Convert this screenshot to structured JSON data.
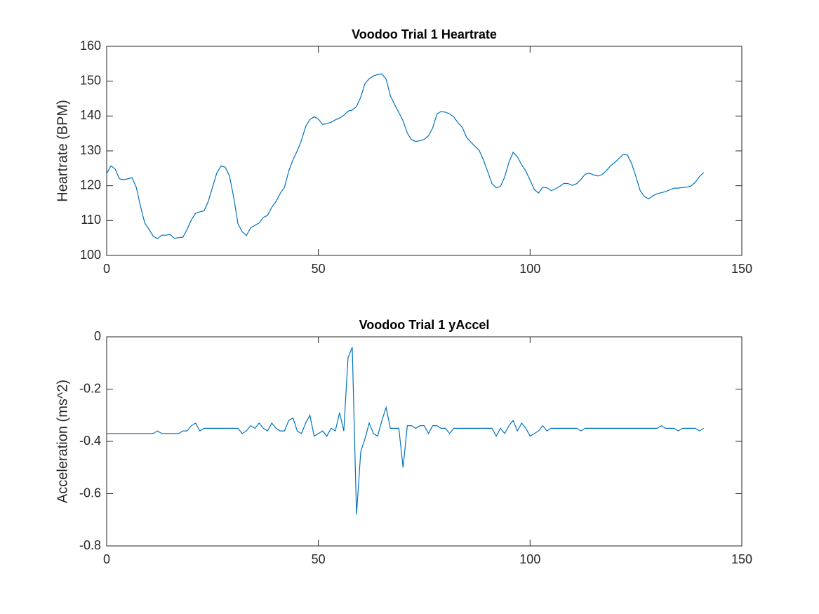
{
  "chart_data": [
    {
      "type": "line",
      "title": "Voodoo Trial 1 Heartrate",
      "ylabel": "Heartrate (BPM)",
      "x": [
        0,
        1,
        2,
        3,
        4,
        5,
        6,
        7,
        8,
        9,
        10,
        11,
        12,
        13,
        14,
        15,
        16,
        17,
        18,
        19,
        20,
        21,
        22,
        23,
        24,
        25,
        26,
        27,
        28,
        29,
        30,
        31,
        32,
        33,
        34,
        35,
        36,
        37,
        38,
        39,
        40,
        41,
        42,
        43,
        44,
        45,
        46,
        47,
        48,
        49,
        50,
        51,
        52,
        53,
        54,
        55,
        56,
        57,
        58,
        59,
        60,
        61,
        62,
        63,
        64,
        65,
        66,
        67,
        68,
        69,
        70,
        71,
        72,
        73,
        74,
        75,
        76,
        77,
        78,
        79,
        80,
        81,
        82,
        83,
        84,
        85,
        86,
        87,
        88,
        89,
        90,
        91,
        92,
        93,
        94,
        95,
        96,
        97,
        98,
        99,
        100,
        101,
        102,
        103,
        104,
        105,
        106,
        107,
        108,
        109,
        110,
        111,
        112,
        113,
        114,
        115,
        116,
        117,
        118,
        119,
        120,
        121,
        122,
        123,
        124,
        125,
        126,
        127,
        128,
        129,
        130,
        131,
        132,
        133,
        134,
        135,
        136,
        137,
        138,
        139,
        140,
        141
      ],
      "values": [
        123.5,
        125.7,
        124.8,
        122,
        121.7,
        122,
        122.3,
        119.5,
        114,
        109.3,
        107.5,
        105.5,
        104.8,
        105.8,
        105.8,
        106,
        104.9,
        105.1,
        105.2,
        107.5,
        110.2,
        112.1,
        112.5,
        112.8,
        115.5,
        119.6,
        123.6,
        125.7,
        125.3,
        122.8,
        116.7,
        109.1,
        106.8,
        105.7,
        107.9,
        108.6,
        109.3,
        110.9,
        111.5,
        113.8,
        115.5,
        117.8,
        119.6,
        124.2,
        127.4,
        130,
        133,
        137,
        139,
        139.8,
        139.1,
        137.6,
        137.8,
        138.2,
        138.9,
        139.4,
        140.2,
        141.4,
        141.7,
        142.7,
        145.4,
        149.3,
        150.7,
        151.5,
        151.9,
        152.1,
        150.6,
        145.8,
        143.3,
        141,
        138.6,
        135.1,
        133.2,
        132.7,
        132.9,
        133.3,
        134.3,
        136.6,
        140.6,
        141.3,
        141.1,
        140.6,
        139.7,
        138,
        136.7,
        133.9,
        132.5,
        131.3,
        130.1,
        127.3,
        124,
        120.6,
        119.4,
        119.8,
        122.5,
        126.7,
        129.6,
        128.3,
        126,
        124.2,
        121.6,
        118.9,
        117.9,
        119.6,
        119.4,
        118.6,
        119.1,
        119.8,
        120.7,
        120.6,
        120.1,
        120.6,
        121.8,
        123.3,
        123.6,
        123.1,
        122.8,
        123.2,
        124.3,
        125.7,
        126.7,
        127.8,
        129,
        128.8,
        126.3,
        122.6,
        118.6,
        116.9,
        116.2,
        117.1,
        117.7,
        118,
        118.3,
        118.8,
        119.3,
        119.3,
        119.5,
        119.6,
        119.9,
        121,
        122.6,
        123.8
      ],
      "color": "#0072bd",
      "xlim": [
        0,
        150
      ],
      "xticks": [
        0,
        50,
        100,
        150
      ],
      "ylim": [
        100,
        160
      ],
      "yticks": [
        100,
        110,
        120,
        130,
        140,
        150,
        160
      ],
      "grid": false
    },
    {
      "type": "line",
      "title": "Voodoo Trial 1 yAccel",
      "ylabel": "Acceleration (ms^2)",
      "x": [
        0,
        1,
        2,
        3,
        4,
        5,
        6,
        7,
        8,
        9,
        10,
        11,
        12,
        13,
        14,
        15,
        16,
        17,
        18,
        19,
        20,
        21,
        22,
        23,
        24,
        25,
        26,
        27,
        28,
        29,
        30,
        31,
        32,
        33,
        34,
        35,
        36,
        37,
        38,
        39,
        40,
        41,
        42,
        43,
        44,
        45,
        46,
        47,
        48,
        49,
        50,
        51,
        52,
        53,
        54,
        55,
        56,
        57,
        58,
        59,
        60,
        61,
        62,
        63,
        64,
        65,
        66,
        67,
        68,
        69,
        70,
        71,
        72,
        73,
        74,
        75,
        76,
        77,
        78,
        79,
        80,
        81,
        82,
        83,
        84,
        85,
        86,
        87,
        88,
        89,
        90,
        91,
        92,
        93,
        94,
        95,
        96,
        97,
        98,
        99,
        100,
        101,
        102,
        103,
        104,
        105,
        106,
        107,
        108,
        109,
        110,
        111,
        112,
        113,
        114,
        115,
        116,
        117,
        118,
        119,
        120,
        121,
        122,
        123,
        124,
        125,
        126,
        127,
        128,
        129,
        130,
        131,
        132,
        133,
        134,
        135,
        136,
        137,
        138,
        139,
        140,
        141
      ],
      "values": [
        -0.37,
        -0.37,
        -0.37,
        -0.37,
        -0.37,
        -0.37,
        -0.37,
        -0.37,
        -0.37,
        -0.37,
        -0.37,
        -0.37,
        -0.36,
        -0.37,
        -0.37,
        -0.37,
        -0.37,
        -0.37,
        -0.36,
        -0.36,
        -0.34,
        -0.33,
        -0.36,
        -0.35,
        -0.35,
        -0.35,
        -0.35,
        -0.35,
        -0.35,
        -0.35,
        -0.35,
        -0.35,
        -0.37,
        -0.36,
        -0.34,
        -0.35,
        -0.33,
        -0.35,
        -0.36,
        -0.33,
        -0.35,
        -0.36,
        -0.36,
        -0.32,
        -0.31,
        -0.36,
        -0.37,
        -0.33,
        -0.3,
        -0.38,
        -0.37,
        -0.36,
        -0.38,
        -0.35,
        -0.36,
        -0.29,
        -0.36,
        -0.08,
        -0.04,
        -0.68,
        -0.44,
        -0.39,
        -0.33,
        -0.37,
        -0.38,
        -0.32,
        -0.27,
        -0.35,
        -0.35,
        -0.35,
        -0.5,
        -0.34,
        -0.34,
        -0.35,
        -0.34,
        -0.34,
        -0.37,
        -0.34,
        -0.34,
        -0.35,
        -0.35,
        -0.37,
        -0.35,
        -0.35,
        -0.35,
        -0.35,
        -0.35,
        -0.35,
        -0.35,
        -0.35,
        -0.35,
        -0.35,
        -0.38,
        -0.35,
        -0.37,
        -0.34,
        -0.32,
        -0.36,
        -0.33,
        -0.35,
        -0.38,
        -0.37,
        -0.36,
        -0.34,
        -0.36,
        -0.35,
        -0.35,
        -0.35,
        -0.35,
        -0.35,
        -0.35,
        -0.35,
        -0.36,
        -0.35,
        -0.35,
        -0.35,
        -0.35,
        -0.35,
        -0.35,
        -0.35,
        -0.35,
        -0.35,
        -0.35,
        -0.35,
        -0.35,
        -0.35,
        -0.35,
        -0.35,
        -0.35,
        -0.35,
        -0.35,
        -0.34,
        -0.35,
        -0.35,
        -0.35,
        -0.36,
        -0.35,
        -0.35,
        -0.35,
        -0.35,
        -0.36,
        -0.35
      ],
      "color": "#0072bd",
      "xlim": [
        0,
        150
      ],
      "xticks": [
        0,
        50,
        100,
        150
      ],
      "ylim": [
        -0.8,
        0
      ],
      "yticks": [
        -0.8,
        -0.6,
        -0.4,
        -0.2,
        0
      ],
      "grid": false
    }
  ]
}
